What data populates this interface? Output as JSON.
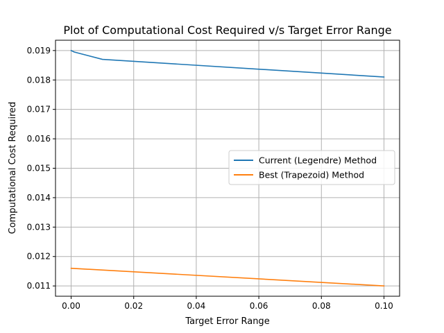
{
  "chart_data": {
    "type": "line",
    "title": "Plot of Computational Cost Required v/s Target Error Range",
    "xlabel": "Target Error Range",
    "ylabel": "Computational Cost Required",
    "xlim": [
      -0.005,
      0.105
    ],
    "ylim": [
      0.01065,
      0.01935
    ],
    "xticks": [
      0.0,
      0.02,
      0.04,
      0.06,
      0.08,
      0.1
    ],
    "xtick_labels": [
      "0.00",
      "0.02",
      "0.04",
      "0.06",
      "0.08",
      "0.10"
    ],
    "yticks": [
      0.011,
      0.012,
      0.013,
      0.014,
      0.015,
      0.016,
      0.017,
      0.018,
      0.019
    ],
    "ytick_labels": [
      "0.011",
      "0.012",
      "0.013",
      "0.014",
      "0.015",
      "0.016",
      "0.017",
      "0.018",
      "0.019"
    ],
    "grid": true,
    "legend_position": "center-right",
    "series": [
      {
        "name": "Current (Legendre) Method",
        "color": "#1f77b4",
        "x": [
          0.0,
          0.001,
          0.01,
          0.1
        ],
        "y": [
          0.019,
          0.01895,
          0.0187,
          0.0181
        ]
      },
      {
        "name": "Best (Trapezoid) Method",
        "color": "#ff7f0e",
        "x": [
          0.0,
          0.1
        ],
        "y": [
          0.0116,
          0.011
        ]
      }
    ]
  }
}
